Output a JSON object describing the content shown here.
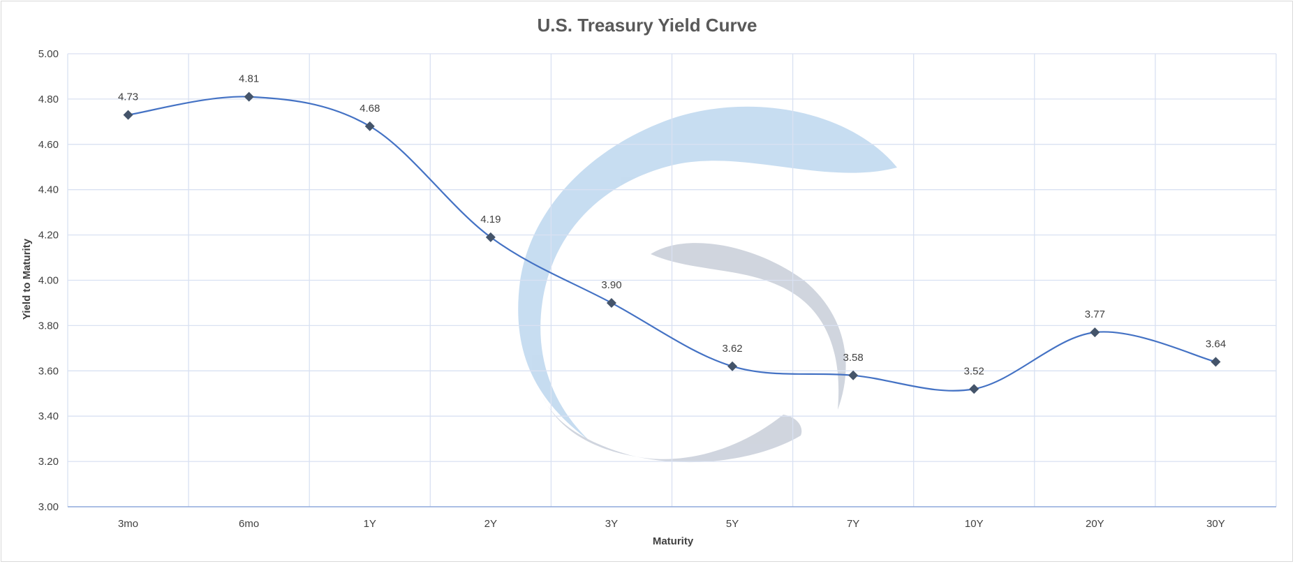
{
  "chart_data": {
    "type": "line",
    "title": "U.S. Treasury Yield Curve",
    "xlabel": "Maturity",
    "ylabel": "Yield to Maturity",
    "categories": [
      "3mo",
      "6mo",
      "1Y",
      "2Y",
      "3Y",
      "5Y",
      "7Y",
      "10Y",
      "20Y",
      "30Y"
    ],
    "series": [
      {
        "values": [
          4.73,
          4.81,
          4.68,
          4.19,
          3.9,
          3.62,
          3.58,
          3.52,
          3.77,
          3.64
        ],
        "color": "#4472c4",
        "marker": "diamond",
        "marker_color": "#44546a",
        "smooth": true,
        "data_labels": [
          "4.73",
          "4.81",
          "4.68",
          "4.19",
          "3.90",
          "3.62",
          "3.58",
          "3.52",
          "3.77",
          "3.64"
        ]
      }
    ],
    "ylim": [
      3.0,
      5.0
    ],
    "yticks": [
      "3.00",
      "3.20",
      "3.40",
      "3.60",
      "3.80",
      "4.00",
      "4.20",
      "4.40",
      "4.60",
      "4.80",
      "5.00"
    ],
    "grid": true,
    "legend": "none",
    "colors": {
      "grid": "#d9e1f2",
      "axis": "#8ea9db",
      "watermark_blue": "#bdd7ee",
      "watermark_gray": "#adb9ca"
    }
  },
  "watermark": {
    "icon": "circular-swoosh-logo"
  }
}
